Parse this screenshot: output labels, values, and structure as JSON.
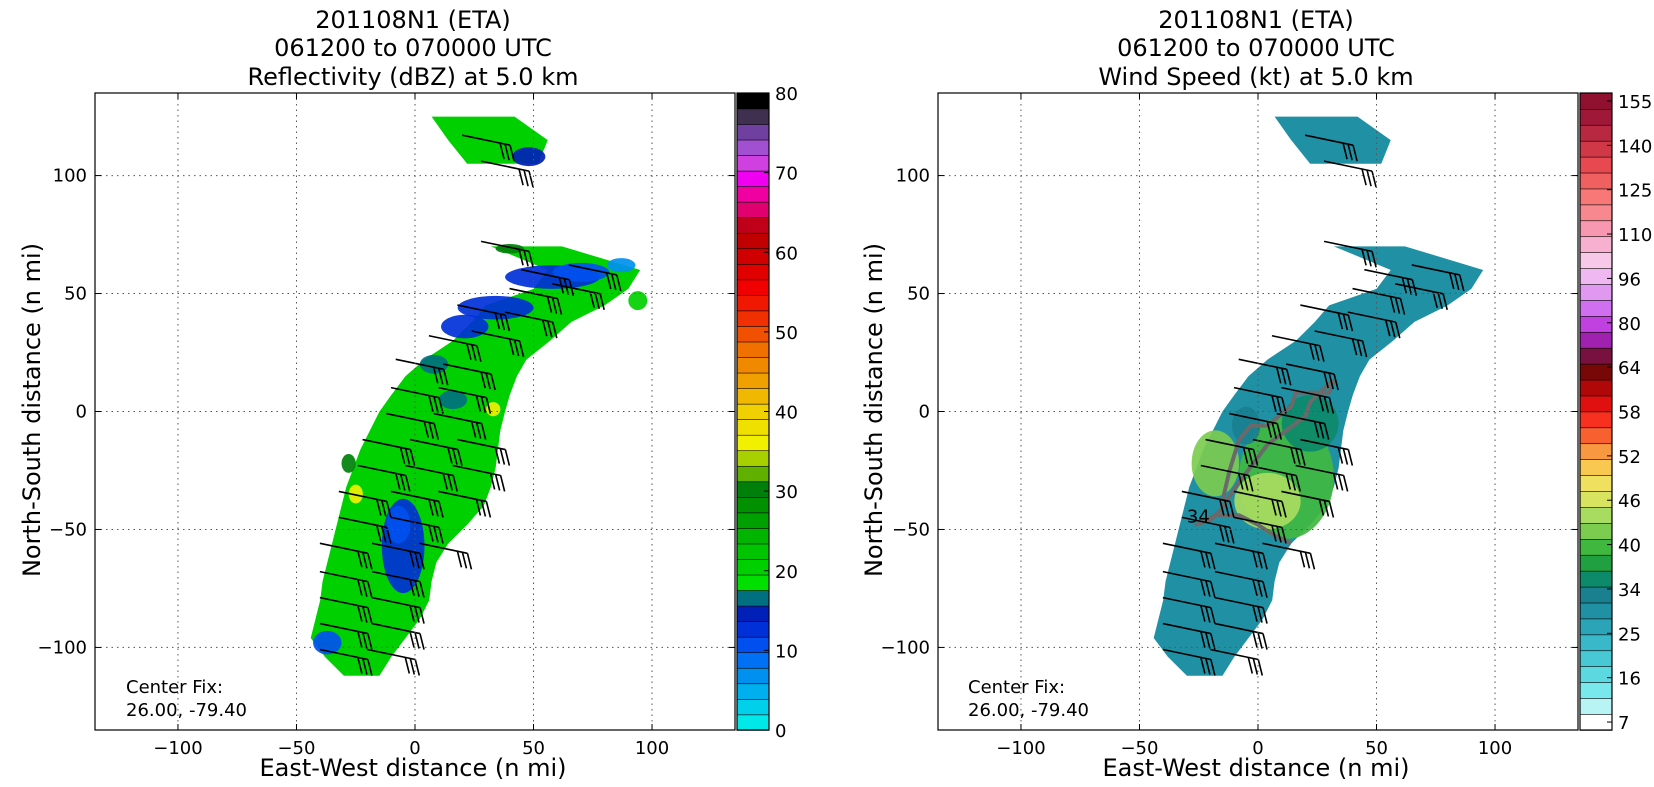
{
  "chart_data": [
    {
      "type": "heatmap",
      "title_lines": [
        "201108N1 (ETA)",
        "061200 to 070000 UTC",
        "Reflectivity (dBZ) at 5.0 km"
      ],
      "xlabel": "East-West distance (n mi)",
      "ylabel": "North-South distance (n mi)",
      "xlim": [
        -135,
        135
      ],
      "ylim": [
        -135,
        135
      ],
      "xticks": [
        -100,
        -50,
        0,
        50,
        100
      ],
      "yticks": [
        -100,
        -50,
        0,
        50,
        100
      ],
      "grid": true,
      "annotation": [
        "Center Fix:",
        "26.00, -79.40"
      ],
      "colorbar": {
        "min": 0,
        "max": 80,
        "ticks": [
          0,
          10,
          20,
          30,
          40,
          50,
          60,
          70,
          80
        ],
        "colors": [
          "#00e8e8",
          "#00d0ea",
          "#00b0ee",
          "#0090f0",
          "#0070f4",
          "#0050f0",
          "#0030d8",
          "#0020b8",
          "#007080",
          "#00e000",
          "#00d000",
          "#00c400",
          "#00b400",
          "#00a000",
          "#009000",
          "#00800a",
          "#60b000",
          "#a8d000",
          "#f0f000",
          "#f0e000",
          "#f0d000",
          "#f0b800",
          "#f0a000",
          "#f08800",
          "#f07000",
          "#f05000",
          "#f03000",
          "#f01800",
          "#f00000",
          "#e00000",
          "#d00000",
          "#c00000",
          "#c00018",
          "#e00070",
          "#f000a0",
          "#f000f0",
          "#d040e0",
          "#a050d0",
          "#7040a0",
          "#403050",
          "#000000"
        ]
      },
      "series": [
        {
          "kind": "echo-field",
          "strips": [
            {
              "y": 125,
              "x": [
                7,
                42
              ]
            },
            {
              "y": 115,
              "x": [
                14,
                56
              ]
            },
            {
              "y": 105,
              "x": [
                22,
                52
              ]
            },
            {
              "y": 70,
              "x": [
                32,
                62
              ]
            },
            {
              "y": 60,
              "x": [
                56,
                95
              ]
            },
            {
              "y": 52,
              "x": [
                50,
                90
              ]
            },
            {
              "y": 45,
              "x": [
                30,
                80
              ]
            },
            {
              "y": 38,
              "x": [
                24,
                66
              ]
            },
            {
              "y": 30,
              "x": [
                16,
                57
              ]
            },
            {
              "y": 22,
              "x": [
                4,
                47
              ]
            },
            {
              "y": 15,
              "x": [
                -4,
                43
              ]
            },
            {
              "y": 7,
              "x": [
                -10,
                40
              ]
            },
            {
              "y": 0,
              "x": [
                -15,
                38
              ]
            },
            {
              "y": -8,
              "x": [
                -19,
                36
              ]
            },
            {
              "y": -16,
              "x": [
                -23,
                35
              ]
            },
            {
              "y": -24,
              "x": [
                -26,
                34
              ]
            },
            {
              "y": -32,
              "x": [
                -29,
                32
              ]
            },
            {
              "y": -40,
              "x": [
                -31,
                29
              ]
            },
            {
              "y": -48,
              "x": [
                -33,
                22
              ]
            },
            {
              "y": -56,
              "x": [
                -35,
                14
              ]
            },
            {
              "y": -64,
              "x": [
                -37,
                9
              ]
            },
            {
              "y": -72,
              "x": [
                -39,
                7
              ]
            },
            {
              "y": -80,
              "x": [
                -40,
                6
              ]
            },
            {
              "y": -88,
              "x": [
                -42,
                2
              ]
            },
            {
              "y": -96,
              "x": [
                -44,
                -4
              ]
            },
            {
              "y": -104,
              "x": [
                -38,
                -10
              ]
            },
            {
              "y": -112,
              "x": [
                -30,
                -15
              ]
            }
          ],
          "blobs": [
            {
              "x": 48,
              "y": 108,
              "rx": 7,
              "ry": 4,
              "dbz": 14
            },
            {
              "x": 58,
              "y": 57,
              "rx": 20,
              "ry": 5,
              "dbz": 12
            },
            {
              "x": 70,
              "y": 59,
              "rx": 12,
              "ry": 4,
              "dbz": 10
            },
            {
              "x": 87,
              "y": 62,
              "rx": 6,
              "ry": 3,
              "dbz": 6
            },
            {
              "x": 34,
              "y": 44,
              "rx": 16,
              "ry": 5,
              "dbz": 13
            },
            {
              "x": 21,
              "y": 36,
              "rx": 10,
              "ry": 5,
              "dbz": 13
            },
            {
              "x": 8,
              "y": 20,
              "rx": 6,
              "ry": 4,
              "dbz": 17
            },
            {
              "x": 16,
              "y": 5,
              "rx": 6,
              "ry": 4,
              "dbz": 16
            },
            {
              "x": -5,
              "y": -57,
              "rx": 9,
              "ry": 20,
              "dbz": 12
            },
            {
              "x": -7,
              "y": -48,
              "rx": 5,
              "ry": 8,
              "dbz": 11
            },
            {
              "x": -37,
              "y": -98,
              "rx": 6,
              "ry": 5,
              "dbz": 10
            },
            {
              "x": 33,
              "y": 1,
              "rx": 3,
              "ry": 3,
              "dbz": 36
            },
            {
              "x": -25,
              "y": -35,
              "rx": 3,
              "ry": 4,
              "dbz": 36
            },
            {
              "x": -28,
              "y": -22,
              "rx": 3,
              "ry": 4,
              "dbz": 30
            },
            {
              "x": 94,
              "y": 47,
              "rx": 4,
              "ry": 4,
              "dbz": 20
            },
            {
              "x": 40,
              "y": 69,
              "rx": 6,
              "ry": 2,
              "dbz": 30
            }
          ],
          "base_dbz": 20
        }
      ]
    },
    {
      "type": "heatmap",
      "title_lines": [
        "201108N1 (ETA)",
        "061200 to 070000 UTC",
        "Wind Speed (kt) at 5.0 km"
      ],
      "xlabel": "East-West distance (n mi)",
      "ylabel": "North-South distance (n mi)",
      "xlim": [
        -135,
        135
      ],
      "ylim": [
        -135,
        135
      ],
      "xticks": [
        -100,
        -50,
        0,
        50,
        100
      ],
      "yticks": [
        -100,
        -50,
        0,
        50,
        100
      ],
      "grid": true,
      "annotation": [
        "Center Fix:",
        "26.00, -79.40"
      ],
      "contour_label": "34",
      "colorbar": {
        "ticks": [
          7,
          16,
          25,
          34,
          40,
          46,
          52,
          58,
          64,
          80,
          96,
          110,
          125,
          140,
          155
        ],
        "colors": [
          "#ffffff",
          "#b8f4f4",
          "#78e8ec",
          "#5cd8e0",
          "#48c8d4",
          "#38b8c8",
          "#2ca4b8",
          "#2090a4",
          "#1a8090",
          "#0c8a6a",
          "#20a040",
          "#40b840",
          "#7ccc50",
          "#a8dc60",
          "#d8e460",
          "#f0e060",
          "#f8c850",
          "#f89840",
          "#f86030",
          "#f83020",
          "#e01010",
          "#b00808",
          "#780808",
          "#781040",
          "#a020b0",
          "#c040e0",
          "#d070f0",
          "#e098f0",
          "#f0b8f0",
          "#f8c8e8",
          "#f8b0d0",
          "#f898b0",
          "#f88890",
          "#f87878",
          "#f06060",
          "#e84850",
          "#d03848",
          "#b82840",
          "#a01838",
          "#901030"
        ]
      },
      "series": [
        {
          "kind": "wind-field",
          "base_kt": 25,
          "blobs": [
            {
              "x": 12,
              "y": -28,
              "rx": 20,
              "ry": 26,
              "kt": 38
            },
            {
              "x": 22,
              "y": -5,
              "rx": 12,
              "ry": 12,
              "kt": 34
            },
            {
              "x": -18,
              "y": -22,
              "rx": 10,
              "ry": 14,
              "kt": 40
            },
            {
              "x": 4,
              "y": -38,
              "rx": 14,
              "ry": 12,
              "kt": 42
            },
            {
              "x": -5,
              "y": -6,
              "rx": 6,
              "ry": 8,
              "kt": 30
            }
          ]
        }
      ],
      "contour_34kt": [
        [
          -15,
          -38
        ],
        [
          -12,
          -25
        ],
        [
          -8,
          -12
        ],
        [
          -3,
          -6
        ],
        [
          4,
          -6
        ],
        [
          10,
          -1
        ],
        [
          14,
          2
        ],
        [
          16,
          8
        ],
        [
          22,
          8
        ],
        [
          30,
          8
        ],
        [
          32,
          13
        ],
        [
          28,
          10
        ],
        [
          22,
          4
        ],
        [
          20,
          -2
        ],
        [
          12,
          -8
        ],
        [
          4,
          -14
        ],
        [
          -2,
          -22
        ],
        [
          -8,
          -30
        ],
        [
          -12,
          -36
        ],
        [
          -16,
          -42
        ],
        [
          -20,
          -46
        ],
        [
          -26,
          -48
        ],
        [
          -18,
          -44
        ],
        [
          -8,
          -44
        ],
        [
          0,
          -48
        ],
        [
          6,
          -52
        ],
        [
          14,
          -56
        ]
      ]
    }
  ],
  "wind_barbs": [
    {
      "x": 30,
      "y": 115,
      "u": 1
    },
    {
      "x": 38,
      "y": 104,
      "u": 1
    },
    {
      "x": 38,
      "y": 70,
      "u": 0
    },
    {
      "x": 55,
      "y": 58,
      "u": 1
    },
    {
      "x": 75,
      "y": 60,
      "u": 1
    },
    {
      "x": 50,
      "y": 50,
      "u": 1
    },
    {
      "x": 68,
      "y": 52,
      "u": 1
    },
    {
      "x": 28,
      "y": 43,
      "u": 1
    },
    {
      "x": 48,
      "y": 40,
      "u": 1
    },
    {
      "x": 16,
      "y": 30,
      "u": 1
    },
    {
      "x": 34,
      "y": 32,
      "u": 1
    },
    {
      "x": 2,
      "y": 20,
      "u": 1
    },
    {
      "x": 22,
      "y": 18,
      "u": 1
    },
    {
      "x": 0,
      "y": 8,
      "u": 1
    },
    {
      "x": 20,
      "y": 8,
      "u": 1
    },
    {
      "x": -2,
      "y": -3,
      "u": 1
    },
    {
      "x": 18,
      "y": -3,
      "u": 1
    },
    {
      "x": -12,
      "y": -14,
      "u": 1
    },
    {
      "x": 8,
      "y": -14,
      "u": 1
    },
    {
      "x": 28,
      "y": -14,
      "u": 1
    },
    {
      "x": -14,
      "y": -25,
      "u": 1
    },
    {
      "x": 6,
      "y": -25,
      "u": 1
    },
    {
      "x": 26,
      "y": -25,
      "u": 1
    },
    {
      "x": -22,
      "y": -36,
      "u": 1
    },
    {
      "x": 0,
      "y": -36,
      "u": 1
    },
    {
      "x": 20,
      "y": -36,
      "u": 1
    },
    {
      "x": -22,
      "y": -47,
      "u": 1
    },
    {
      "x": 0,
      "y": -47,
      "u": 1
    },
    {
      "x": -30,
      "y": -58,
      "u": 1
    },
    {
      "x": -8,
      "y": -58,
      "u": 1
    },
    {
      "x": 12,
      "y": -58,
      "u": 1
    },
    {
      "x": -30,
      "y": -70,
      "u": 1
    },
    {
      "x": -8,
      "y": -70,
      "u": 1
    },
    {
      "x": -30,
      "y": -81,
      "u": 1
    },
    {
      "x": -8,
      "y": -81,
      "u": 1
    },
    {
      "x": -30,
      "y": -92,
      "u": 1
    },
    {
      "x": -8,
      "y": -92,
      "u": 1
    },
    {
      "x": -30,
      "y": -103,
      "u": 1
    },
    {
      "x": -10,
      "y": -103,
      "u": 1
    }
  ]
}
